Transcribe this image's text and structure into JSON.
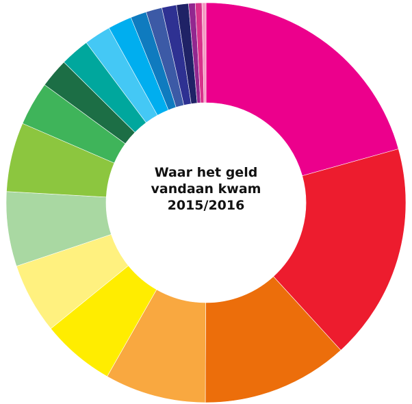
{
  "chart_data": {
    "type": "pie",
    "donut": true,
    "title": [
      "Waar het geld",
      "vandaan kwam",
      "2015/2016"
    ],
    "slices": [
      {
        "value": 19.2,
        "color": "#ec008c"
      },
      {
        "value": 16.3,
        "color": "#ed1c2e"
      },
      {
        "value": 11.0,
        "color": "#ec6e0b"
      },
      {
        "value": 7.6,
        "color": "#f9a840"
      },
      {
        "value": 5.5,
        "color": "#ffed00"
      },
      {
        "value": 5.3,
        "color": "#fff17f"
      },
      {
        "value": 5.6,
        "color": "#a9d8a2"
      },
      {
        "value": 5.2,
        "color": "#8cc63f"
      },
      {
        "value": 3.3,
        "color": "#3fb45a"
      },
      {
        "value": 2.2,
        "color": "#1c6e45"
      },
      {
        "value": 2.2,
        "color": "#00a79d"
      },
      {
        "value": 2.0,
        "color": "#44c8f5"
      },
      {
        "value": 1.8,
        "color": "#00aeef"
      },
      {
        "value": 1.2,
        "color": "#0f7bbf"
      },
      {
        "value": 1.2,
        "color": "#3c5aa6"
      },
      {
        "value": 1.1,
        "color": "#2e3192"
      },
      {
        "value": 0.9,
        "color": "#1f2266"
      },
      {
        "value": 0.5,
        "color": "#92278f"
      },
      {
        "value": 0.5,
        "color": "#d8338a"
      },
      {
        "value": 0.3,
        "color": "#f49ac1"
      }
    ]
  }
}
